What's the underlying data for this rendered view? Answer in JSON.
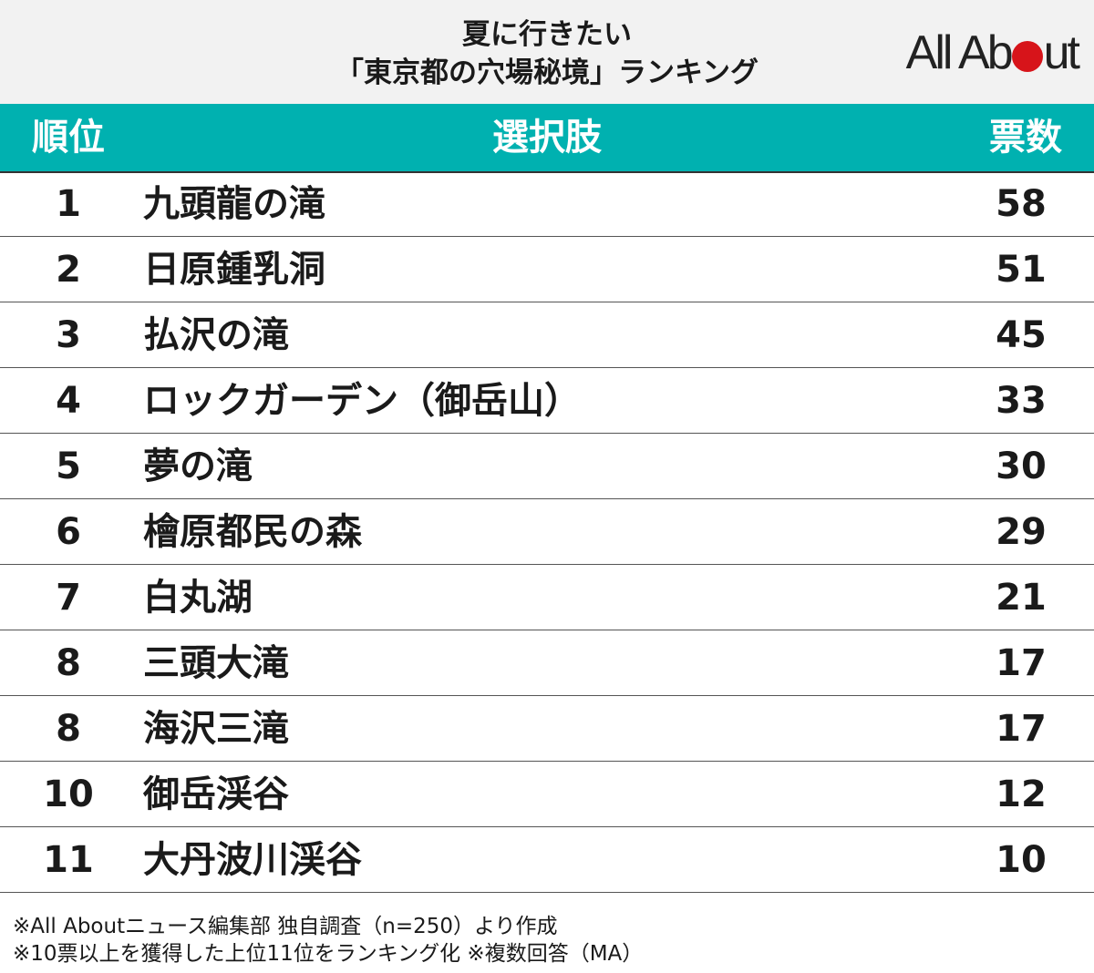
{
  "title": {
    "line1": "夏に行きたい",
    "line2": "「東京都の穴場秘境」ランキング"
  },
  "logo": {
    "text_before": "All Ab",
    "text_after": "ut"
  },
  "table": {
    "headers": {
      "rank": "順位",
      "choice": "選択肢",
      "votes": "票数"
    }
  },
  "chart_data": {
    "type": "table",
    "columns": [
      "順位",
      "選択肢",
      "票数"
    ],
    "rows": [
      {
        "rank": "1",
        "choice": "九頭龍の滝",
        "votes": "58"
      },
      {
        "rank": "2",
        "choice": "日原鍾乳洞",
        "votes": "51"
      },
      {
        "rank": "3",
        "choice": "払沢の滝",
        "votes": "45"
      },
      {
        "rank": "4",
        "choice": "ロックガーデン（御岳山）",
        "votes": "33"
      },
      {
        "rank": "5",
        "choice": "夢の滝",
        "votes": "30"
      },
      {
        "rank": "6",
        "choice": "檜原都民の森",
        "votes": "29"
      },
      {
        "rank": "7",
        "choice": "白丸湖",
        "votes": "21"
      },
      {
        "rank": "8",
        "choice": "三頭大滝",
        "votes": "17"
      },
      {
        "rank": "8",
        "choice": "海沢三滝",
        "votes": "17"
      },
      {
        "rank": "10",
        "choice": "御岳渓谷",
        "votes": "12"
      },
      {
        "rank": "11",
        "choice": "大丹波川渓谷",
        "votes": "10"
      }
    ]
  },
  "notes": [
    "※All Aboutニュース編集部 独自調査（n=250）より作成",
    "※10票以上を獲得した上位11位をランキング化 ※複数回答（MA）"
  ],
  "colors": {
    "header_bg": "#00b1b0",
    "logo_dot": "#d7141a",
    "title_bg": "#f2f2f2"
  }
}
